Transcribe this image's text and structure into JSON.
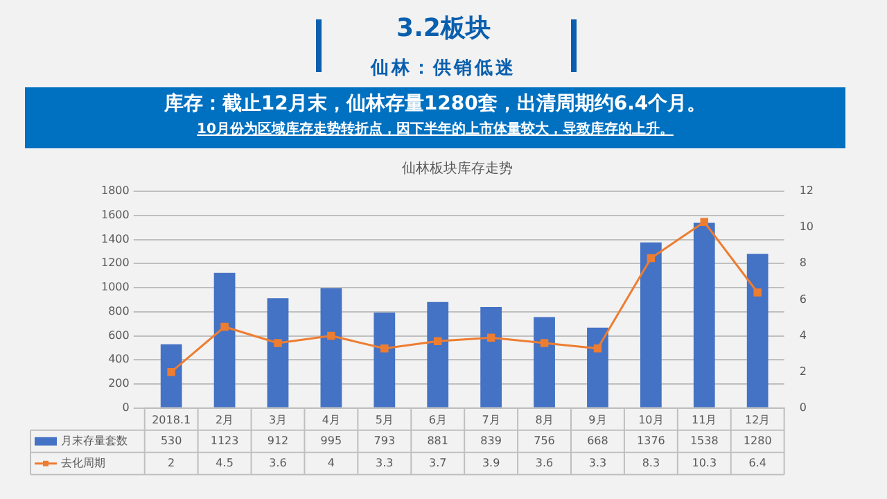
{
  "chart_data": {
    "type": "bar",
    "title": "仙林板块库存走势",
    "annotations": [
      "3.2板块",
      "仙林：供销低迷",
      "库存：截止12月末，仙林存量1280套，出清周期约6.4个月。",
      "10月份为区域库存走势转折点，因下半年的上市体量较大，导致库存的上升。"
    ],
    "categories": [
      "2018.1",
      "2月",
      "3月",
      "4月",
      "5月",
      "6月",
      "7月",
      "8月",
      "9月",
      "10月",
      "11月",
      "12月"
    ],
    "series": [
      {
        "name": "月末存量套数",
        "color": "#4472c4",
        "values": [
          530,
          1123,
          912,
          995,
          793,
          881,
          839,
          756,
          668,
          1376,
          1538,
          1280
        ]
      },
      {
        "name": "去化周期",
        "type": "line",
        "axis": "y2",
        "color": "#ed7d31",
        "marker": "square",
        "values": [
          2,
          4.5,
          3.6,
          4,
          3.3,
          3.7,
          3.9,
          3.6,
          3.3,
          8.3,
          10.3,
          6.4
        ]
      }
    ],
    "ylim": [
      0,
      1800
    ],
    "yticks": [
      0,
      200,
      400,
      600,
      800,
      1000,
      1200,
      1400,
      1600,
      1800
    ],
    "y2lim": [
      0,
      12
    ],
    "y2ticks": [
      0,
      2,
      4,
      6,
      8,
      10,
      12
    ],
    "grid": "y",
    "legend": "bottom",
    "data_labels": true
  }
}
